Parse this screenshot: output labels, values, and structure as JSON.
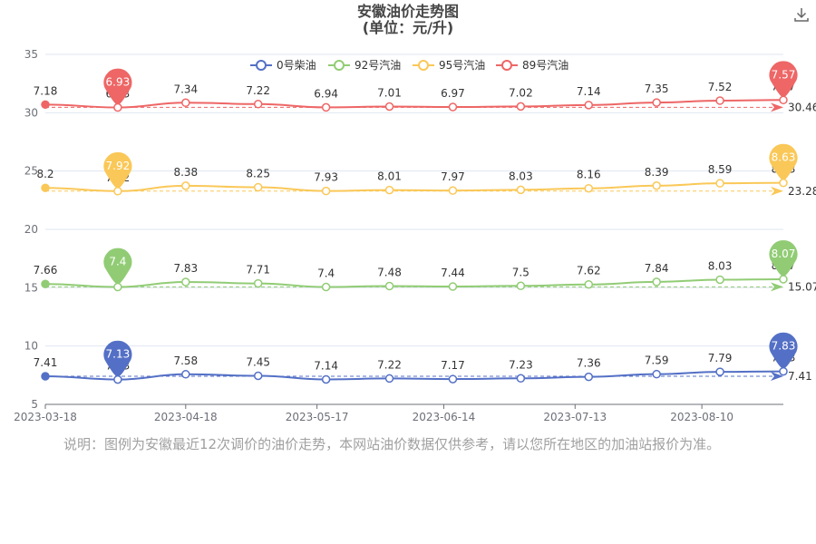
{
  "title": {
    "line1": "安徽油价走势图",
    "line2": "(单位：元/升)"
  },
  "toolbar": {
    "download_icon": "download-icon"
  },
  "note": "说明：图例为安徽最近12次调价的油价走势，本网站油价数据仅供参考，请以您所在地区的加油站报价为准。",
  "chart_data": {
    "type": "line",
    "x": [
      "2023-03-18",
      "2023-04-03",
      "2023-04-18",
      "2023-05-04",
      "2023-05-19",
      "2023-06-02",
      "2023-06-16",
      "2023-07-01",
      "2023-07-16",
      "2023-07-31",
      "2023-08-14",
      "2023-08-28"
    ],
    "xticks": [
      "2023-03-18",
      "2023-04-18",
      "2023-05-17",
      "2023-06-14",
      "2023-07-13",
      "2023-08-10"
    ],
    "ylim": [
      5,
      35
    ],
    "yticks": [
      5,
      10,
      15,
      20,
      25,
      30,
      35
    ],
    "legend_position": "top-center",
    "series": [
      {
        "name": "0号柴油",
        "color": "#5470c6",
        "offset": 0,
        "labels": [
          7.41,
          7.13,
          7.58,
          7.45,
          7.14,
          7.22,
          7.17,
          7.23,
          7.36,
          7.59,
          7.79,
          7.83
        ],
        "min_label": "7.13",
        "max_label": "7.83",
        "avg_label": "7.41"
      },
      {
        "name": "92号汽油",
        "color": "#91cc75",
        "offset": 7.66,
        "labels": [
          7.66,
          7.4,
          7.83,
          7.71,
          7.4,
          7.48,
          7.44,
          7.5,
          7.62,
          7.84,
          8.03,
          8.07
        ],
        "min_label": "7.4",
        "max_label": "8.07",
        "avg_label": "15.07"
      },
      {
        "name": "95号汽油",
        "color": "#fac858",
        "offset": 15.36,
        "labels": [
          8.2,
          7.92,
          8.38,
          8.25,
          7.93,
          8.01,
          7.97,
          8.03,
          8.16,
          8.39,
          8.59,
          8.63
        ],
        "min_label": "7.92",
        "max_label": "8.63",
        "avg_label": "23.28"
      },
      {
        "name": "89号汽油",
        "color": "#ee6666",
        "offset": 23.52,
        "labels": [
          7.18,
          6.93,
          7.34,
          7.22,
          6.94,
          7.01,
          6.97,
          7.02,
          7.14,
          7.35,
          7.52,
          7.57
        ],
        "min_label": "6.93",
        "max_label": "7.57",
        "avg_label": "30.46"
      }
    ]
  }
}
